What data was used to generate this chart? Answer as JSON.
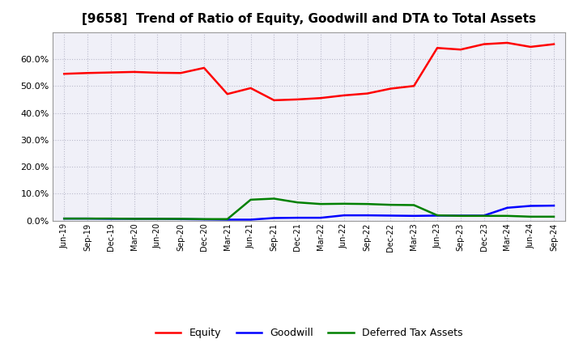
{
  "title": "[9658]  Trend of Ratio of Equity, Goodwill and DTA to Total Assets",
  "x_labels": [
    "Jun-19",
    "Sep-19",
    "Dec-19",
    "Mar-20",
    "Jun-20",
    "Sep-20",
    "Dec-20",
    "Mar-21",
    "Jun-21",
    "Sep-21",
    "Dec-21",
    "Mar-22",
    "Jun-22",
    "Sep-22",
    "Dec-22",
    "Mar-23",
    "Jun-23",
    "Sep-23",
    "Dec-23",
    "Mar-24",
    "Jun-24",
    "Sep-24"
  ],
  "equity": [
    0.545,
    0.548,
    0.55,
    0.552,
    0.549,
    0.548,
    0.567,
    0.47,
    0.492,
    0.447,
    0.45,
    0.455,
    0.465,
    0.472,
    0.49,
    0.5,
    0.641,
    0.635,
    0.655,
    0.66,
    0.645,
    0.655
  ],
  "goodwill": [
    0.008,
    0.008,
    0.007,
    0.007,
    0.007,
    0.006,
    0.005,
    0.004,
    0.004,
    0.01,
    0.011,
    0.011,
    0.02,
    0.02,
    0.019,
    0.018,
    0.019,
    0.019,
    0.019,
    0.048,
    0.055,
    0.056
  ],
  "dta": [
    0.008,
    0.008,
    0.008,
    0.007,
    0.007,
    0.007,
    0.006,
    0.006,
    0.078,
    0.082,
    0.068,
    0.062,
    0.063,
    0.062,
    0.059,
    0.058,
    0.02,
    0.018,
    0.018,
    0.018,
    0.015,
    0.015
  ],
  "equity_color": "#FF0000",
  "goodwill_color": "#0000FF",
  "dta_color": "#008000",
  "bg_color": "#FFFFFF",
  "plot_bg_color": "#F0F0F8",
  "grid_color": "#BBBBCC",
  "ylim": [
    0.0,
    0.7
  ],
  "yticks": [
    0.0,
    0.1,
    0.2,
    0.3,
    0.4,
    0.5,
    0.6
  ],
  "legend_labels": [
    "Equity",
    "Goodwill",
    "Deferred Tax Assets"
  ],
  "title_fontsize": 11,
  "tick_fontsize": 7,
  "legend_fontsize": 9,
  "linewidth": 1.8
}
